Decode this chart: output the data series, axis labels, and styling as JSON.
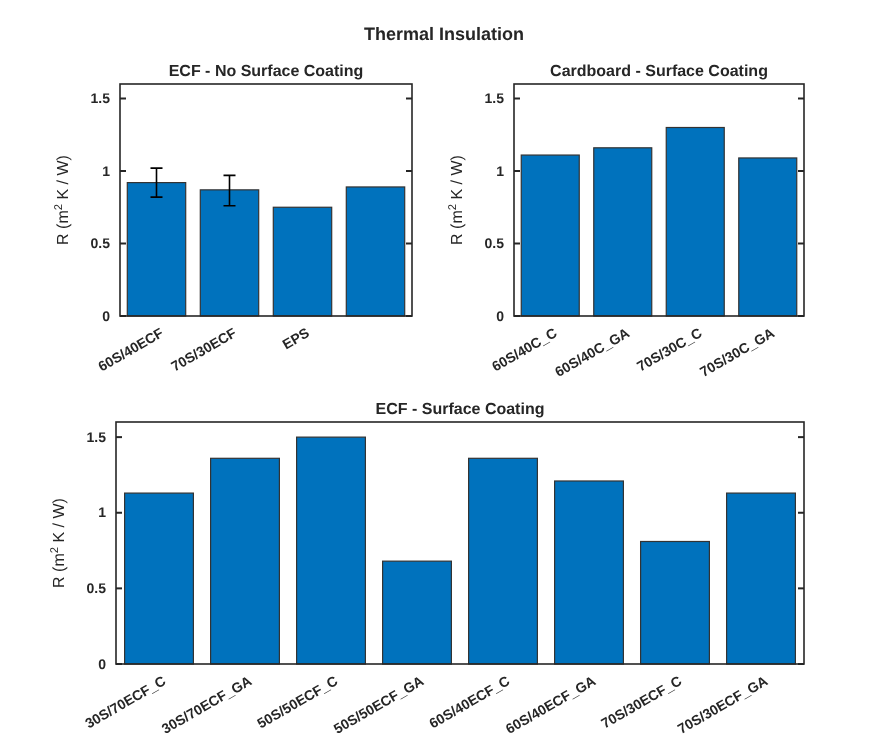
{
  "chart_data": [
    {
      "type": "bar",
      "title": "ECF - No Surface Coating",
      "ylabel": "R (m$^{2}$ K / W)",
      "annotations": [
        "Thermal Insulation"
      ],
      "categories": [
        "60S/40ECF",
        "70S/30ECF",
        "EPS",
        null
      ],
      "values": [
        0.92,
        0.87,
        0.75,
        0.89
      ],
      "errors": [
        [
          0.82,
          1.02
        ],
        [
          0.76,
          0.97
        ],
        null,
        null
      ],
      "color": "#0072bd",
      "ylim": [
        0,
        1.6
      ],
      "yticks": [
        0,
        0.5,
        1,
        1.5
      ]
    },
    {
      "type": "bar",
      "title": "Cardboard - Surface Coating",
      "ylabel": "R (m$^{2}$ K / W)",
      "categories": [
        "60S/40C_C",
        "60S/40C_GA",
        "70S/30C_C",
        "70S/30C_GA"
      ],
      "values": [
        1.11,
        1.16,
        1.3,
        1.09
      ],
      "color": "#0072bd",
      "ylim": [
        0,
        1.6
      ],
      "yticks": [
        0,
        0.5,
        1,
        1.5
      ]
    },
    {
      "type": "bar",
      "title": "ECF - Surface Coating",
      "ylabel": "R (m$^{2}$ K / W)",
      "categories": [
        "30S/70ECF_C",
        "30S/70ECF_GA",
        "50S/50ECF_C",
        "50S/50ECF_GA",
        "60S/40ECF_C",
        "60S/40ECF_GA",
        "70S/30ECF_C",
        "70S/30ECF_GA"
      ],
      "values": [
        1.13,
        1.36,
        1.5,
        0.68,
        1.36,
        1.21,
        0.81,
        1.13
      ],
      "color": "#0072bd",
      "ylim": [
        0,
        1.6
      ],
      "yticks": [
        0,
        0.5,
        1,
        1.5
      ]
    }
  ]
}
